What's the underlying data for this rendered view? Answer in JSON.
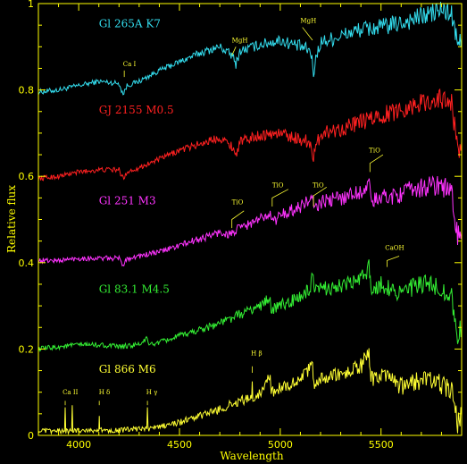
{
  "colors": {
    "background": "#000000",
    "axis": "#ffff00",
    "axis_title": "#ffff00"
  },
  "chart_data": {
    "type": "line",
    "xlabel": "Wavelength",
    "ylabel": "Relative flux",
    "xlim": [
      3800,
      5900
    ],
    "ylim": [
      0,
      1
    ],
    "xticks": [
      4000,
      4500,
      5000,
      5500
    ],
    "yticks": [
      0,
      0.2,
      0.4,
      0.6,
      0.8,
      1
    ],
    "x_tick_labels": [
      "4000",
      "4500",
      "5000",
      "5500"
    ],
    "y_tick_labels": [
      "0",
      "0.2",
      "0.4",
      "0.6",
      "0.8",
      "1"
    ],
    "grid": false,
    "series": [
      {
        "name": "Gl 265A K7",
        "color": "#33ddee",
        "x": [
          3800,
          3900,
          4000,
          4100,
          4200,
          4220,
          4240,
          4300,
          4400,
          4500,
          4600,
          4700,
          4760,
          4780,
          4800,
          4900,
          5000,
          5100,
          5150,
          5165,
          5180,
          5200,
          5300,
          5400,
          5500,
          5600,
          5700,
          5800,
          5850,
          5880,
          5900
        ],
        "y": [
          0.795,
          0.8,
          0.81,
          0.82,
          0.815,
          0.79,
          0.81,
          0.82,
          0.845,
          0.865,
          0.885,
          0.9,
          0.88,
          0.86,
          0.89,
          0.905,
          0.915,
          0.9,
          0.89,
          0.84,
          0.88,
          0.91,
          0.925,
          0.94,
          0.945,
          0.955,
          0.97,
          0.985,
          0.975,
          0.9,
          0.92
        ]
      },
      {
        "name": "GJ 2155 M0.5",
        "color": "#ff2020",
        "x": [
          3800,
          3900,
          4000,
          4100,
          4200,
          4220,
          4240,
          4300,
          4400,
          4500,
          4600,
          4700,
          4760,
          4780,
          4800,
          4900,
          5000,
          5100,
          5150,
          5165,
          5180,
          5200,
          5300,
          5400,
          5500,
          5600,
          5700,
          5800,
          5850,
          5880,
          5900
        ],
        "y": [
          0.595,
          0.6,
          0.61,
          0.615,
          0.615,
          0.595,
          0.61,
          0.62,
          0.64,
          0.66,
          0.675,
          0.69,
          0.67,
          0.65,
          0.68,
          0.695,
          0.7,
          0.685,
          0.68,
          0.64,
          0.67,
          0.7,
          0.71,
          0.725,
          0.74,
          0.755,
          0.77,
          0.78,
          0.77,
          0.66,
          0.68
        ]
      },
      {
        "name": "Gl 251 M3",
        "color": "#ff33ff",
        "x": [
          3800,
          3900,
          4000,
          4100,
          4200,
          4220,
          4240,
          4300,
          4400,
          4500,
          4600,
          4700,
          4750,
          4800,
          4900,
          4950,
          4955,
          5000,
          5100,
          5160,
          5170,
          5200,
          5300,
          5400,
          5445,
          5450,
          5500,
          5600,
          5700,
          5800,
          5850,
          5880,
          5900
        ],
        "y": [
          0.405,
          0.405,
          0.41,
          0.41,
          0.41,
          0.395,
          0.41,
          0.415,
          0.425,
          0.44,
          0.455,
          0.47,
          0.465,
          0.48,
          0.5,
          0.52,
          0.49,
          0.51,
          0.53,
          0.55,
          0.52,
          0.54,
          0.55,
          0.565,
          0.58,
          0.54,
          0.55,
          0.56,
          0.575,
          0.58,
          0.56,
          0.46,
          0.47
        ]
      },
      {
        "name": "Gl 83.1 M4.5",
        "color": "#33ee33",
        "x": [
          3800,
          3900,
          4000,
          4100,
          4200,
          4300,
          4340,
          4345,
          4400,
          4500,
          4600,
          4700,
          4800,
          4900,
          4950,
          4955,
          5000,
          5100,
          5150,
          5160,
          5170,
          5200,
          5300,
          5400,
          5440,
          5450,
          5500,
          5600,
          5700,
          5800,
          5850,
          5880,
          5900
        ],
        "y": [
          0.2,
          0.205,
          0.21,
          0.21,
          0.205,
          0.21,
          0.225,
          0.21,
          0.215,
          0.23,
          0.245,
          0.26,
          0.28,
          0.3,
          0.32,
          0.29,
          0.3,
          0.32,
          0.34,
          0.37,
          0.33,
          0.34,
          0.345,
          0.36,
          0.39,
          0.34,
          0.35,
          0.33,
          0.35,
          0.34,
          0.32,
          0.23,
          0.25
        ]
      },
      {
        "name": "Gl 866 M6",
        "color": "#ffff33",
        "x": [
          3800,
          3900,
          3930,
          3933,
          3936,
          3965,
          3968,
          3971,
          4000,
          4100,
          4102,
          4104,
          4200,
          4300,
          4338,
          4341,
          4344,
          4400,
          4500,
          4600,
          4700,
          4800,
          4858,
          4861,
          4864,
          4900,
          4950,
          4955,
          5000,
          5100,
          5160,
          5170,
          5200,
          5300,
          5400,
          5440,
          5450,
          5500,
          5600,
          5700,
          5800,
          5850,
          5880,
          5900
        ],
        "y": [
          0.01,
          0.01,
          0.01,
          0.065,
          0.01,
          0.01,
          0.07,
          0.01,
          0.012,
          0.012,
          0.045,
          0.012,
          0.012,
          0.015,
          0.015,
          0.065,
          0.015,
          0.02,
          0.03,
          0.045,
          0.06,
          0.08,
          0.085,
          0.125,
          0.085,
          0.1,
          0.14,
          0.1,
          0.11,
          0.13,
          0.16,
          0.12,
          0.13,
          0.14,
          0.16,
          0.19,
          0.13,
          0.14,
          0.11,
          0.13,
          0.12,
          0.1,
          0.03,
          0.05
        ]
      }
    ],
    "star_labels": [
      {
        "text": "Gl 265A K7",
        "color": "#33ddee",
        "x": 4100,
        "y": 0.945
      },
      {
        "text": "GJ 2155 M0.5",
        "color": "#ff2020",
        "x": 4100,
        "y": 0.745
      },
      {
        "text": "Gl 251 M3",
        "color": "#ff33ff",
        "x": 4100,
        "y": 0.535
      },
      {
        "text": "Gl 83.1 M4.5",
        "color": "#33ee33",
        "x": 4100,
        "y": 0.33
      },
      {
        "text": "Gl 866 M6",
        "color": "#ffff33",
        "x": 4100,
        "y": 0.145
      }
    ],
    "annotations": [
      {
        "text": "Ca I",
        "color": "#ffff33",
        "x": 4220,
        "y": 0.855,
        "lx1": 4226,
        "ly1": 0.845,
        "lx2": 4226,
        "ly2": 0.83
      },
      {
        "text": "MgH",
        "color": "#ffff33",
        "x": 4760,
        "y": 0.91,
        "lx1": 4780,
        "ly1": 0.9,
        "lx2": 4760,
        "ly2": 0.88
      },
      {
        "text": "MgH",
        "color": "#ffff33",
        "x": 5100,
        "y": 0.955,
        "lx1": 5110,
        "ly1": 0.945,
        "lx2": 5160,
        "ly2": 0.915
      },
      {
        "text": "TiO",
        "color": "#ffff33",
        "x": 4760,
        "y": 0.535,
        "lx1": 4760,
        "ly1": 0.48,
        "lx2": 4760,
        "ly2": 0.5,
        "lx3": 4820,
        "ly3": 0.52
      },
      {
        "text": "TiO",
        "color": "#ffff33",
        "x": 4960,
        "y": 0.575,
        "lx1": 4960,
        "ly1": 0.53,
        "lx2": 4960,
        "ly2": 0.55,
        "lx3": 5040,
        "ly3": 0.57
      },
      {
        "text": "TiO",
        "color": "#ffff33",
        "x": 5160,
        "y": 0.575,
        "lx1": 5165,
        "ly1": 0.53,
        "lx2": 5165,
        "ly2": 0.555,
        "lx3": 5230,
        "ly3": 0.575
      },
      {
        "text": "TiO",
        "color": "#ffff33",
        "x": 5440,
        "y": 0.655,
        "lx1": 5445,
        "ly1": 0.61,
        "lx2": 5445,
        "ly2": 0.63,
        "lx3": 5510,
        "ly3": 0.65
      },
      {
        "text": "CaOH",
        "color": "#ffff33",
        "x": 5520,
        "y": 0.43,
        "lx1": 5530,
        "ly1": 0.39,
        "lx2": 5530,
        "ly2": 0.405,
        "lx3": 5590,
        "ly3": 0.415
      },
      {
        "text": "H β",
        "color": "#ffff33",
        "x": 4855,
        "y": 0.185,
        "lx1": 4861,
        "ly1": 0.16,
        "lx2": 4861,
        "ly2": 0.145
      },
      {
        "text": "Ca II",
        "color": "#ffff33",
        "x": 3920,
        "y": 0.095,
        "lx1": 3933,
        "ly1": 0.08,
        "lx2": 3933,
        "ly2": 0.07
      },
      {
        "text": "H δ",
        "color": "#ffff33",
        "x": 4100,
        "y": 0.095,
        "lx1": 4102,
        "ly1": 0.08,
        "lx2": 4102,
        "ly2": 0.07
      },
      {
        "text": "H γ",
        "color": "#ffff33",
        "x": 4335,
        "y": 0.095,
        "lx1": 4341,
        "ly1": 0.08,
        "lx2": 4341,
        "ly2": 0.07
      }
    ]
  }
}
